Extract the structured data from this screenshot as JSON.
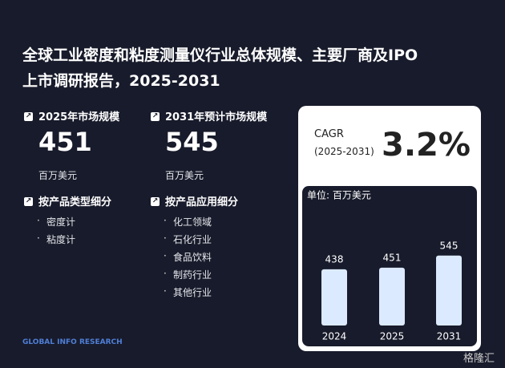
{
  "title": [
    "全球工业密度和粘度测量仪行业总体规模、主要厂商及IPO",
    "上市调研报告，2025-2031"
  ],
  "stats": [
    {
      "label": "2025年市场规模",
      "value": 451,
      "unit": "百万美元"
    },
    {
      "label": "2031年预计市场规模",
      "value": 545,
      "unit": "百万美元"
    }
  ],
  "segments": [
    {
      "title": "按产品类型细分",
      "items": [
        "密度计",
        "粘度计"
      ]
    },
    {
      "title": "按产品应用细分",
      "items": [
        "化工领域",
        "石化行业",
        "食品饮料",
        "制药行业",
        "其他行业"
      ]
    }
  ],
  "cagr": {
    "label": "CAGR",
    "period": "(2025-2031)",
    "value": "3.2%"
  },
  "chart_data": {
    "type": "bar",
    "title": "单位: 百万美元",
    "categories": [
      "2024",
      "2025",
      "2031"
    ],
    "values": [
      438,
      451,
      545
    ],
    "color": "#dbeafe"
  },
  "logo": "GLOBAL INFO RESEARCH",
  "watermark": "格隆汇"
}
